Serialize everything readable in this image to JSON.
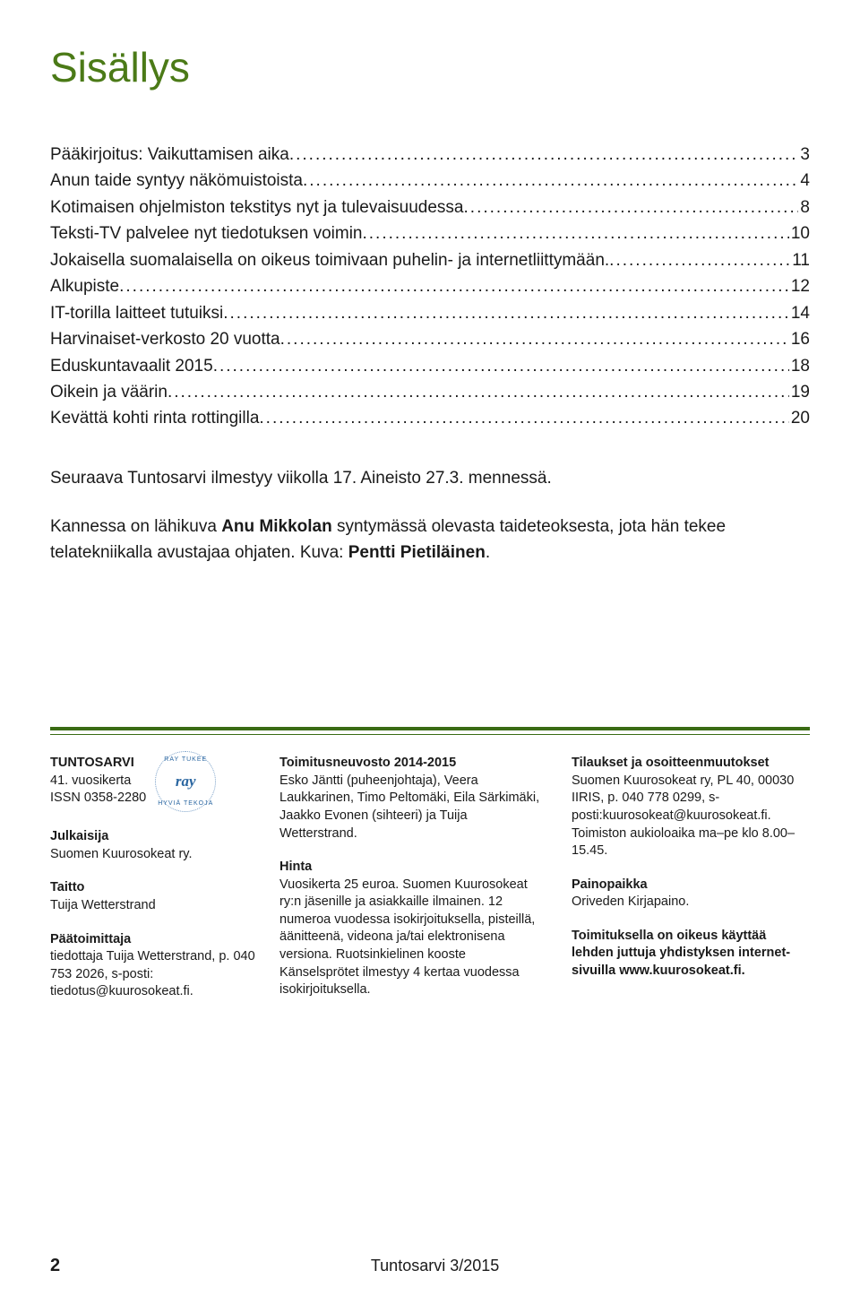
{
  "title": "Sisällys",
  "colors": {
    "heading": "#4b7a17",
    "rule": "#3a6b14",
    "text": "#1a1a1a",
    "background": "#ffffff"
  },
  "toc": [
    {
      "label": "Pääkirjoitus: Vaikuttamisen aika",
      "page": "3"
    },
    {
      "label": "Anun taide syntyy näkömuistoista",
      "page": "4"
    },
    {
      "label": "Kotimaisen ohjelmiston tekstitys nyt ja tulevaisuudessa",
      "page": "8"
    },
    {
      "label": "Teksti-TV palvelee nyt tiedotuksen voimin",
      "page": "10"
    },
    {
      "label": "Jokaisella suomalaisella on oikeus toimivaan puhelin- ja internetliittymään.",
      "page": "11"
    },
    {
      "label": "Alkupiste",
      "page": "12"
    },
    {
      "label": "IT-torilla laitteet tutuiksi",
      "page": "14"
    },
    {
      "label": "Harvinaiset-verkosto 20 vuotta",
      "page": "16"
    },
    {
      "label": "Eduskuntavaalit 2015",
      "page": "18"
    },
    {
      "label": "Oikein ja väärin",
      "page": "19"
    },
    {
      "label": "Kevättä kohti rinta rottingilla",
      "page": "20"
    }
  ],
  "intro": {
    "line1": "Seuraava Tuntosarvi ilmestyy viikolla 17. Aineisto 27.3. mennessä.",
    "line2_pre": "Kannessa on lähikuva ",
    "line2_name1": "Anu Mikkolan",
    "line2_mid": " syntymässä olevasta taideteoksesta, jota hän tekee telatekniikalla avustajaa ohjaten. Kuva: ",
    "line2_name2": "Pentti Pietiläinen",
    "line2_end": "."
  },
  "footer": {
    "col1": {
      "mag_name": "TUNTOSARVI",
      "volume": "41. vuosikerta",
      "issn": "ISSN 0358-2280",
      "pub_h": "Julkaisija",
      "pub_v": "Suomen Kuurosokeat ry.",
      "layout_h": "Taitto",
      "layout_v": "Tuija Wetterstrand",
      "editor_h": "Päätoimittaja",
      "editor_v": "tiedottaja Tuija Wetterstrand, p. 040 753 2026, s-posti: tiedotus@kuurosokeat.fi."
    },
    "badge": {
      "top": "RAY TUKEE",
      "center": "ray",
      "bottom": "HYVIÄ TEKOJA"
    },
    "col2": {
      "board_h": "Toimitusneuvosto 2014-2015",
      "board_v": "Esko Jäntti (puheenjohtaja), Veera Laukkarinen, Timo Peltomäki, Eila Särkimäki, Jaakko Evonen (sihteeri) ja Tuija Wetterstrand.",
      "price_h": "Hinta",
      "price_v": "Vuosikerta 25 euroa. Suomen Kuurosokeat ry:n jäsenille ja asiakkaille ilmainen. 12 numeroa vuodessa isokirjoituksella, pisteillä, äänitteenä, videona ja/tai elektronisena versiona. Ruotsinkielinen kooste Känselsprötet ilmestyy 4 kertaa vuodessa isokirjoituksella."
    },
    "col3": {
      "orders_h": "Tilaukset ja osoitteenmuutokset",
      "orders_v": "Suomen Kuurosokeat ry, PL 40, 00030 IIRIS, p. 040 778 0299, s-posti:kuurosokeat@kuurosokeat.fi. Toimiston aukioloaika ma–pe klo 8.00–15.45.",
      "print_h": "Painopaikka",
      "print_v": "Oriveden Kirjapaino.",
      "rights": "Toimituksella on oikeus käyttää lehden juttuja yhdistyksen internet-sivuilla www.kuurosokeat.fi."
    }
  },
  "page_number": "2",
  "issue": "Tuntosarvi 3/2015"
}
